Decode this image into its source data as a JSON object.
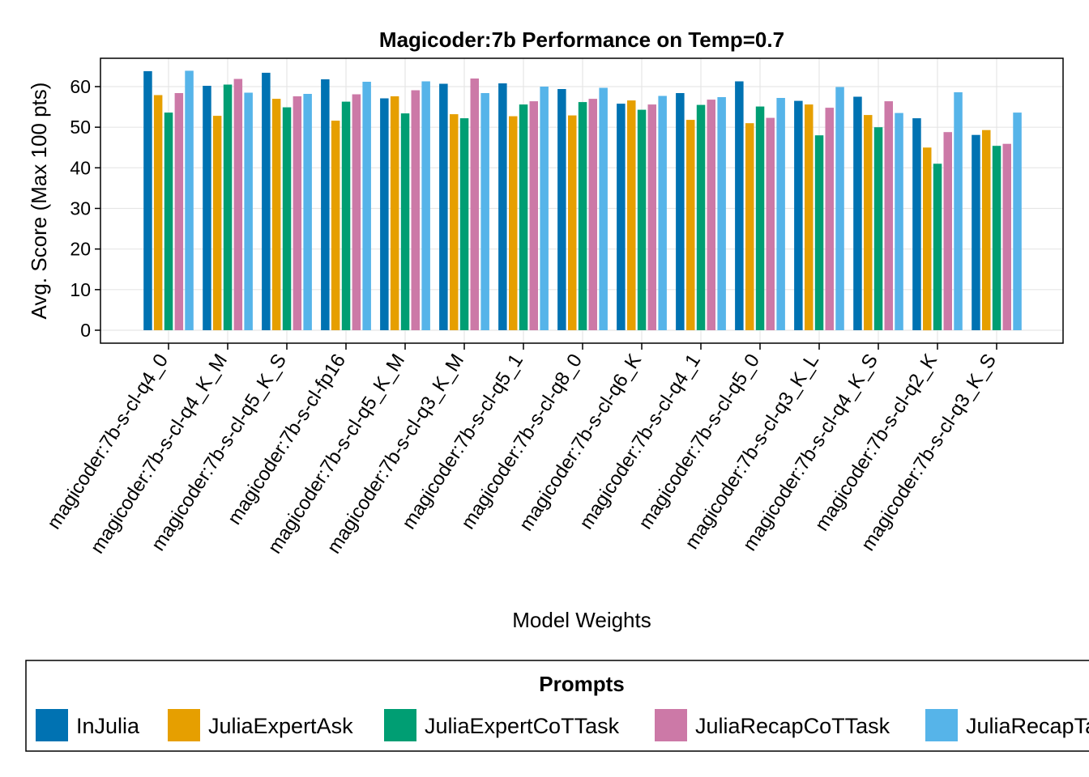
{
  "chart_data": {
    "type": "bar",
    "title": "Magicoder:7b Performance on Temp=0.7",
    "xlabel": "Model Weights",
    "ylabel": "Avg. Score (Max 100 pts)",
    "ylim": [
      -3,
      67
    ],
    "yticks": [
      0,
      10,
      20,
      30,
      40,
      50,
      60
    ],
    "grid": true,
    "legend": {
      "title": "Prompts",
      "placement": "bottom"
    },
    "categories": [
      "magicoder:7b-s-cl-q4_0",
      "magicoder:7b-s-cl-q4_K_M",
      "magicoder:7b-s-cl-q5_K_S",
      "magicoder:7b-s-cl-fp16",
      "magicoder:7b-s-cl-q5_K_M",
      "magicoder:7b-s-cl-q3_K_M",
      "magicoder:7b-s-cl-q5_1",
      "magicoder:7b-s-cl-q8_0",
      "magicoder:7b-s-cl-q6_K",
      "magicoder:7b-s-cl-q4_1",
      "magicoder:7b-s-cl-q5_0",
      "magicoder:7b-s-cl-q3_K_L",
      "magicoder:7b-s-cl-q4_K_S",
      "magicoder:7b-s-cl-q2_K",
      "magicoder:7b-s-cl-q3_K_S"
    ],
    "series": [
      {
        "name": "InJulia",
        "color": "#0072b2",
        "values": [
          63.8,
          60.2,
          63.4,
          61.8,
          57.1,
          60.7,
          60.8,
          59.4,
          55.8,
          58.4,
          61.3,
          56.5,
          57.5,
          52.2,
          48.1
        ]
      },
      {
        "name": "JuliaExpertAsk",
        "color": "#e69f00",
        "values": [
          57.9,
          52.8,
          57.0,
          51.6,
          57.6,
          53.2,
          52.7,
          52.9,
          56.6,
          51.8,
          51.0,
          55.6,
          53.0,
          45.0,
          49.3
        ]
      },
      {
        "name": "JuliaExpertCoTTask",
        "color": "#009e73",
        "values": [
          53.6,
          60.5,
          54.9,
          56.3,
          53.4,
          52.2,
          55.6,
          56.2,
          54.3,
          55.5,
          55.1,
          48.0,
          50.0,
          41.0,
          45.4
        ]
      },
      {
        "name": "JuliaRecapCoTTask",
        "color": "#cc79a7",
        "values": [
          58.4,
          61.9,
          57.6,
          58.1,
          59.1,
          62.0,
          56.4,
          57.0,
          55.6,
          56.8,
          52.3,
          54.8,
          56.4,
          48.8,
          45.9
        ]
      },
      {
        "name": "JuliaRecapTask",
        "color": "#56b4e9",
        "values": [
          63.9,
          58.5,
          58.2,
          61.2,
          61.3,
          58.4,
          60.0,
          59.7,
          57.7,
          57.4,
          57.2,
          59.9,
          53.5,
          58.6,
          53.6
        ]
      }
    ]
  }
}
